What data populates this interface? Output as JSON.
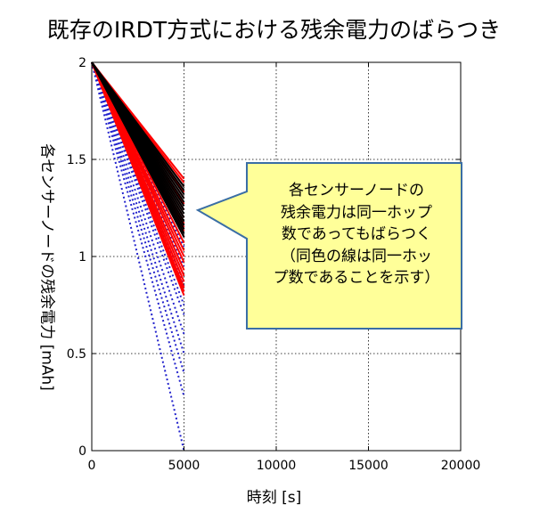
{
  "chart_data": {
    "type": "line",
    "title": "既存のIRDT方式における残余電力のばらつき",
    "xlabel": "時刻 [s]",
    "ylabel": "各センサーノードの残余電力 [mAh]",
    "xlim": [
      0,
      20000
    ],
    "ylim": [
      0,
      2
    ],
    "xticks": [
      "0",
      "5000",
      "10000",
      "15000",
      "20000"
    ],
    "yticks": [
      "0",
      "0.5",
      "1",
      "1.5",
      "2"
    ],
    "grid": true,
    "series": [
      {
        "color": "#ff0000",
        "style": "solid",
        "x": [
          0,
          5000
        ],
        "end_values": [
          1.4,
          1.38,
          1.36,
          1.33,
          1.3,
          1.27,
          1.24,
          1.2,
          1.17,
          1.15,
          1.13,
          1.1,
          1.07,
          1.03,
          1.0,
          0.97,
          0.93,
          0.9,
          0.87,
          0.84,
          0.82,
          0.8
        ]
      },
      {
        "color": "#000000",
        "style": "solid",
        "x": [
          0,
          5000
        ],
        "end_values": [
          1.36,
          1.34,
          1.32,
          1.3,
          1.28,
          1.26,
          1.24,
          1.22,
          1.2,
          1.18,
          1.16,
          1.14,
          1.12,
          1.1
        ]
      },
      {
        "color": "#2222cc",
        "style": "dotted",
        "x": [
          0,
          5000
        ],
        "end_values": [
          1.15,
          1.1,
          1.05,
          1.0,
          0.95,
          0.9,
          0.85,
          0.8,
          0.75,
          0.7,
          0.6,
          0.5,
          0.4,
          0.28,
          0.0
        ]
      }
    ],
    "start_value": 2.0,
    "annotation": {
      "lines": [
        "各センサーノードの",
        "残余電力は同一ホップ",
        "数であってもばらつく",
        "（同色の線は同一ホッ",
        "プ数であることを示す）"
      ],
      "fill": "#ffff99",
      "border": "#3a6ea5"
    }
  }
}
